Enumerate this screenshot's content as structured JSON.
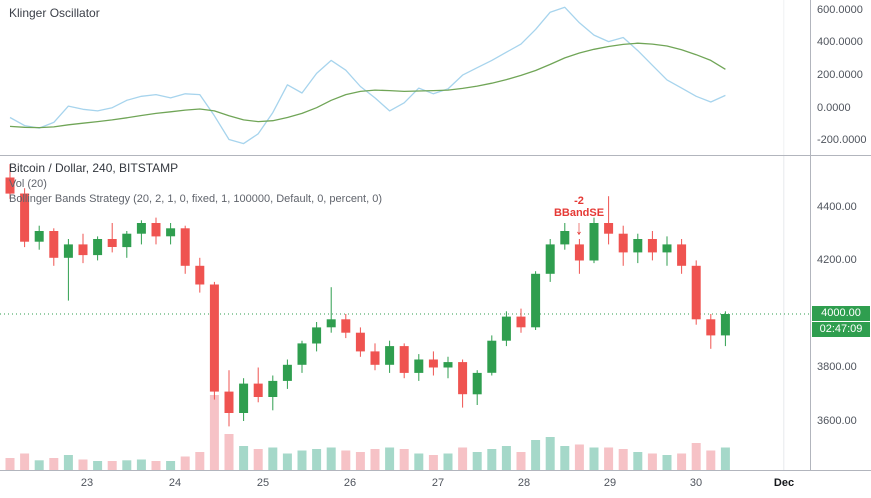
{
  "oscillator": {
    "title": "Klinger Oscillator"
  },
  "main": {
    "symbol": "Bitcoin / Dollar, 240, BITSTAMP",
    "vol_label": "Vol (20)",
    "strategy_label": "Bollinger Bands Strategy (20, 2, 1, 0, fixed, 1, 100000, Default, 0, percent, 0)",
    "annotation": {
      "qty": "-2",
      "name": "BBandSE",
      "arrow_icon": "↓"
    },
    "last_price": "4000.00",
    "countdown": "02:47:09"
  },
  "colors": {
    "up": "#2f9e4f",
    "down": "#ef5350",
    "vol_up": "#a5d8c9",
    "vol_down": "#f6c2c6",
    "badge": "#2f9e4f",
    "price_line": "#2f9e4f",
    "osc_line": "#a7d4ed",
    "osc_signal": "#70a557",
    "annotation": "#e53935"
  },
  "chart_data": [
    {
      "type": "line",
      "title": "Klinger Oscillator",
      "ylim": [
        -290,
        660
      ],
      "grid": false,
      "y_ticks": [
        {
          "value": 600,
          "label": "600.0000"
        },
        {
          "value": 400,
          "label": "400.0000"
        },
        {
          "value": 200,
          "label": "200.0000"
        },
        {
          "value": 0,
          "label": "0.0000"
        },
        {
          "value": -200,
          "label": "-200.0000"
        }
      ],
      "series": [
        {
          "name": "Klinger",
          "color": "#a7d4ed",
          "values": [
            -60,
            -110,
            -125,
            -90,
            10,
            -10,
            -20,
            0,
            45,
            70,
            80,
            60,
            85,
            80,
            -50,
            -195,
            -220,
            -160,
            -30,
            140,
            90,
            210,
            290,
            230,
            130,
            60,
            -20,
            30,
            120,
            85,
            115,
            200,
            245,
            290,
            340,
            390,
            480,
            585,
            615,
            520,
            445,
            405,
            430,
            350,
            260,
            170,
            120,
            70,
            35,
            75
          ]
        },
        {
          "name": "Signal",
          "color": "#70a557",
          "values": [
            -115,
            -120,
            -122,
            -118,
            -105,
            -95,
            -85,
            -75,
            -62,
            -48,
            -35,
            -25,
            -15,
            -8,
            -20,
            -50,
            -75,
            -85,
            -80,
            -60,
            -35,
            0,
            45,
            80,
            100,
            108,
            105,
            100,
            102,
            105,
            108,
            118,
            132,
            150,
            172,
            198,
            228,
            265,
            305,
            335,
            358,
            375,
            388,
            395,
            390,
            378,
            355,
            325,
            290,
            235
          ]
        }
      ]
    },
    {
      "type": "candlestick",
      "title": "Bitcoin / Dollar, 240, BITSTAMP",
      "interval_minutes": 240,
      "ylim": [
        3417,
        4594
      ],
      "price_line": 4000,
      "annotation_index": 39,
      "month_line_index": 53,
      "y_ticks": [
        {
          "value": 4400,
          "label": "4400.00"
        },
        {
          "value": 4200,
          "label": "4200.00"
        },
        {
          "value": 4000,
          "label": "4000.00"
        },
        {
          "value": 3800,
          "label": "3800.00"
        },
        {
          "value": 3600,
          "label": "3600.00"
        }
      ],
      "x_ticks": [
        {
          "index": 5.3,
          "label": "23"
        },
        {
          "index": 11.3,
          "label": "24"
        },
        {
          "index": 17.3,
          "label": "25"
        },
        {
          "index": 23.3,
          "label": "26"
        },
        {
          "index": 29.3,
          "label": "27"
        },
        {
          "index": 35.2,
          "label": "28"
        },
        {
          "index": 41.1,
          "label": "29"
        },
        {
          "index": 47,
          "label": "30"
        },
        {
          "index": 53,
          "label": "Dec",
          "emphasis": true
        }
      ],
      "candles": [
        [
          4510,
          4560,
          4430,
          4450
        ],
        [
          4450,
          4470,
          4250,
          4270
        ],
        [
          4270,
          4330,
          4240,
          4310
        ],
        [
          4310,
          4320,
          4180,
          4210
        ],
        [
          4210,
          4280,
          4050,
          4260
        ],
        [
          4260,
          4300,
          4190,
          4220
        ],
        [
          4220,
          4290,
          4200,
          4280
        ],
        [
          4280,
          4340,
          4230,
          4250
        ],
        [
          4250,
          4310,
          4210,
          4300
        ],
        [
          4300,
          4350,
          4260,
          4340
        ],
        [
          4340,
          4360,
          4260,
          4290
        ],
        [
          4290,
          4340,
          4260,
          4320
        ],
        [
          4320,
          4330,
          4150,
          4180
        ],
        [
          4180,
          4210,
          4080,
          4110
        ],
        [
          4110,
          4120,
          3680,
          3710
        ],
        [
          3710,
          3790,
          3580,
          3630
        ],
        [
          3630,
          3760,
          3600,
          3740
        ],
        [
          3740,
          3800,
          3670,
          3690
        ],
        [
          3690,
          3770,
          3640,
          3750
        ],
        [
          3750,
          3830,
          3720,
          3810
        ],
        [
          3810,
          3900,
          3780,
          3890
        ],
        [
          3890,
          3970,
          3860,
          3950
        ],
        [
          3950,
          4100,
          3930,
          3980
        ],
        [
          3980,
          4000,
          3910,
          3930
        ],
        [
          3930,
          3950,
          3840,
          3860
        ],
        [
          3860,
          3890,
          3790,
          3810
        ],
        [
          3810,
          3900,
          3780,
          3880
        ],
        [
          3880,
          3890,
          3760,
          3780
        ],
        [
          3780,
          3850,
          3750,
          3830
        ],
        [
          3830,
          3860,
          3770,
          3800
        ],
        [
          3800,
          3840,
          3760,
          3820
        ],
        [
          3820,
          3830,
          3650,
          3700
        ],
        [
          3700,
          3790,
          3660,
          3780
        ],
        [
          3780,
          3920,
          3770,
          3900
        ],
        [
          3900,
          4010,
          3880,
          3990
        ],
        [
          3990,
          4020,
          3930,
          3950
        ],
        [
          3950,
          4160,
          3940,
          4150
        ],
        [
          4150,
          4280,
          4120,
          4260
        ],
        [
          4260,
          4340,
          4240,
          4310
        ],
        [
          4260,
          4280,
          4150,
          4200
        ],
        [
          4200,
          4360,
          4190,
          4340
        ],
        [
          4340,
          4440,
          4260,
          4300
        ],
        [
          4300,
          4330,
          4180,
          4230
        ],
        [
          4230,
          4300,
          4190,
          4280
        ],
        [
          4280,
          4310,
          4200,
          4230
        ],
        [
          4230,
          4290,
          4180,
          4260
        ],
        [
          4260,
          4280,
          4150,
          4180
        ],
        [
          4180,
          4200,
          3960,
          3980
        ],
        [
          3980,
          4000,
          3870,
          3920
        ],
        [
          3920,
          4010,
          3880,
          4000
        ]
      ],
      "volumes": [
        0.16,
        0.22,
        0.13,
        0.16,
        0.2,
        0.14,
        0.12,
        0.12,
        0.13,
        0.14,
        0.12,
        0.12,
        0.18,
        0.24,
        1.0,
        0.48,
        0.32,
        0.28,
        0.3,
        0.22,
        0.26,
        0.28,
        0.3,
        0.26,
        0.24,
        0.28,
        0.3,
        0.28,
        0.22,
        0.2,
        0.22,
        0.3,
        0.24,
        0.28,
        0.32,
        0.24,
        0.4,
        0.44,
        0.32,
        0.34,
        0.3,
        0.3,
        0.28,
        0.24,
        0.22,
        0.2,
        0.22,
        0.36,
        0.26,
        0.3
      ]
    }
  ]
}
